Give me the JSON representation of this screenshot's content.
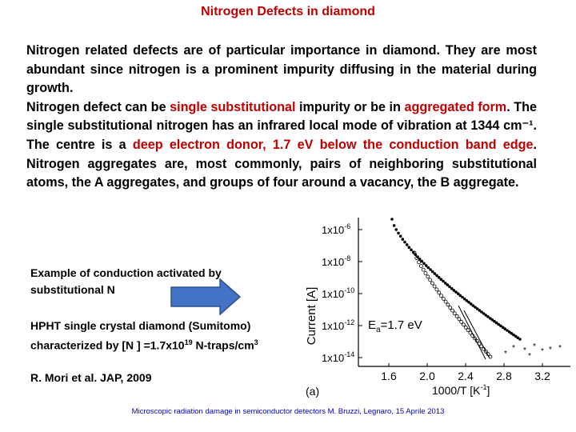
{
  "title": "Nitrogen Defects  in diamond",
  "paragraph": {
    "line1": "Nitrogen related defects are of particular importance in diamond. They are most abundant since nitrogen is a prominent impurity diffusing in the material during growth.",
    "p2_a": "Nitrogen defect  can be ",
    "p2_b": "single substitutional",
    "p2_c": " impurity or be in ",
    "p2_d": "aggregated form",
    "p2_e": ". The single substitutional nitrogen has an infrared local mode of vibration at 1344 cm⁻¹. The centre is a ",
    "p2_f": "deep electron donor,  1.7 eV below the conduction band edge",
    "p2_g": ". Nitrogen aggregates are, most commonly, pairs of neighboring substitutional atoms, the A aggregates, and groups of four around a vacancy, the B aggregate."
  },
  "notes": {
    "example": "Example of conduction activated by substitutional N",
    "hpht_a": "HPHT single crystal diamond (Sumitomo) characterized by  [N ] =1.7x10",
    "hpht_exp": "19",
    "hpht_b": " N-traps/cm",
    "hpht_exp2": "3",
    "reference": "R. Mori et al. JAP, 2009"
  },
  "arrow_color": "#4472c4",
  "graph": {
    "ytick_base": "1x10",
    "ytick_exps": [
      "-6",
      "-8",
      "-10",
      "-12",
      "-14"
    ],
    "xticks": [
      "1.6",
      "2.0",
      "2.4",
      "2.8",
      "3.2"
    ],
    "ylabel": "Current [A]",
    "xlabel_a": "1000/T [K",
    "xlabel_exp": "-1",
    "xlabel_b": "]",
    "annotation_a": "E",
    "annotation_sub": "a",
    "annotation_b": "=1.7 eV",
    "panel": "(a)"
  },
  "footer": "Microscopic radiation damage in semiconductor detectors  M. Bruzzi, Legnaro, 15 Aprile 2013"
}
